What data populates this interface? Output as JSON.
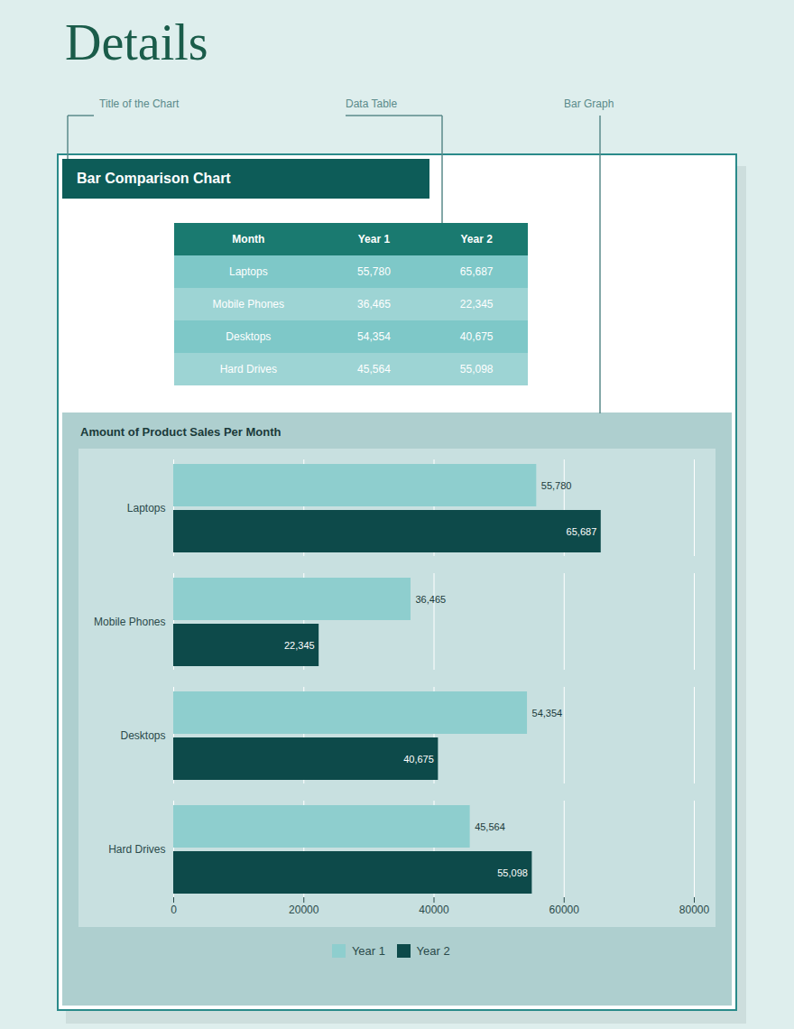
{
  "chart_data": {
    "type": "bar",
    "orientation": "horizontal",
    "title": "Amount of Product Sales Per Month",
    "annotations": [
      "Details",
      "Title of the Chart",
      "Data Table",
      "Bar Graph",
      "Bar Comparison Chart"
    ],
    "table": {
      "columns": [
        "Month",
        "Year 1",
        "Year 2"
      ],
      "rows": [
        [
          "Laptops",
          "55,780",
          "65,687"
        ],
        [
          "Mobile Phones",
          "36,465",
          "22,345"
        ],
        [
          "Desktops",
          "54,354",
          "40,675"
        ],
        [
          "Hard Drives",
          "45,564",
          "55,098"
        ]
      ]
    },
    "categories": [
      "Laptops",
      "Mobile Phones",
      "Desktops",
      "Hard Drives"
    ],
    "series": [
      {
        "name": "Year 1",
        "color": "#8ecece",
        "values": [
          55780,
          36465,
          54354,
          45564
        ],
        "value_labels": [
          "55,780",
          "36,465",
          "54,354",
          "45,564"
        ]
      },
      {
        "name": "Year 2",
        "color": "#0d4a4a",
        "values": [
          65687,
          22345,
          40675,
          55098
        ],
        "value_labels": [
          "65,687",
          "22,345",
          "40,675",
          "55,098"
        ]
      }
    ],
    "xlim": [
      0,
      80000
    ],
    "xticks": [
      0,
      20000,
      40000,
      60000,
      80000
    ],
    "grid": true,
    "legend": "bottom",
    "data_labels": true
  }
}
